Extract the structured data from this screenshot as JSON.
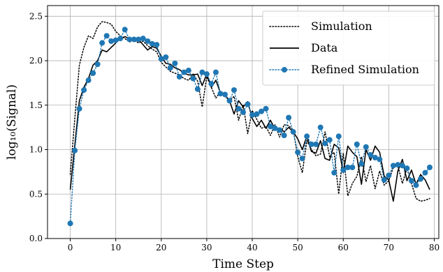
{
  "chart_data": {
    "type": "line",
    "xlabel": "Time Step",
    "ylabel": "log₁₀(Signal)",
    "xlim": [
      -5,
      81
    ],
    "ylim": [
      0.0,
      2.62
    ],
    "xticks": [
      0,
      10,
      20,
      30,
      40,
      50,
      60,
      70,
      80
    ],
    "yticks": [
      0.0,
      0.5,
      1.0,
      1.5,
      2.0,
      2.5
    ],
    "ytick_labels": [
      "0.0",
      "0.5",
      "1.0",
      "1.5",
      "2.0",
      "2.5"
    ],
    "grid": true,
    "legend_position": "top-right",
    "x": [
      0,
      1,
      2,
      3,
      4,
      5,
      6,
      7,
      8,
      9,
      10,
      11,
      12,
      13,
      14,
      15,
      16,
      17,
      18,
      19,
      20,
      21,
      22,
      23,
      24,
      25,
      26,
      27,
      28,
      29,
      30,
      31,
      32,
      33,
      34,
      35,
      36,
      37,
      38,
      39,
      40,
      41,
      42,
      43,
      44,
      45,
      46,
      47,
      48,
      49,
      50,
      51,
      52,
      53,
      54,
      55,
      56,
      57,
      58,
      59,
      60,
      61,
      62,
      63,
      64,
      65,
      66,
      67,
      68,
      69,
      70,
      71,
      72,
      73,
      74,
      75,
      76,
      77,
      78,
      79
    ],
    "series": [
      {
        "name": "Simulation",
        "style": "dotted",
        "color": "#000000",
        "values": [
          0.72,
          1.35,
          1.95,
          2.15,
          2.28,
          2.25,
          2.38,
          2.44,
          2.43,
          2.41,
          2.33,
          2.28,
          2.25,
          2.21,
          2.23,
          2.2,
          2.22,
          2.17,
          2.13,
          2.1,
          1.98,
          1.93,
          1.88,
          1.86,
          1.84,
          1.8,
          1.78,
          1.85,
          1.77,
          1.48,
          1.82,
          1.7,
          1.58,
          1.65,
          1.6,
          1.55,
          1.6,
          1.33,
          1.5,
          1.18,
          1.44,
          1.34,
          1.24,
          1.26,
          1.16,
          1.28,
          1.14,
          1.28,
          1.27,
          1.22,
          0.92,
          0.74,
          1.1,
          1.0,
          0.93,
          0.95,
          1.2,
          0.92,
          0.97,
          0.5,
          0.96,
          0.48,
          0.62,
          0.7,
          0.92,
          0.64,
          0.82,
          0.56,
          0.76,
          0.6,
          0.65,
          0.8,
          0.82,
          0.62,
          0.79,
          0.62,
          0.45,
          0.42,
          0.43,
          0.45
        ]
      },
      {
        "name": "Data",
        "style": "solid",
        "color": "#000000",
        "values": [
          0.55,
          1.05,
          1.55,
          1.7,
          1.8,
          1.95,
          2.0,
          2.12,
          2.1,
          2.15,
          2.2,
          2.25,
          2.27,
          2.25,
          2.24,
          2.24,
          2.18,
          2.12,
          2.16,
          2.14,
          2.05,
          1.97,
          1.96,
          1.92,
          1.9,
          1.86,
          1.84,
          1.84,
          1.85,
          1.72,
          1.85,
          1.7,
          1.78,
          1.64,
          1.62,
          1.55,
          1.4,
          1.55,
          1.48,
          1.54,
          1.35,
          1.26,
          1.33,
          1.24,
          1.33,
          1.23,
          1.24,
          1.2,
          1.25,
          1.2,
          1.12,
          1.0,
          1.15,
          0.98,
          0.96,
          1.1,
          0.9,
          0.88,
          1.06,
          1.02,
          0.74,
          1.04,
          0.97,
          0.92,
          0.61,
          1.0,
          0.88,
          1.04,
          0.97,
          0.7,
          0.66,
          0.42,
          0.76,
          0.89,
          0.65,
          0.77,
          0.61,
          0.72,
          0.66,
          0.55
        ]
      },
      {
        "name": "Refined Simulation",
        "style": "dotted-markers",
        "color": "#1f77b4",
        "values": [
          0.17,
          0.99,
          1.46,
          1.67,
          1.78,
          1.86,
          1.96,
          2.2,
          2.28,
          2.22,
          2.23,
          2.25,
          2.35,
          2.24,
          2.24,
          2.24,
          2.25,
          2.22,
          2.19,
          2.18,
          2.02,
          2.04,
          1.92,
          1.97,
          1.82,
          1.87,
          1.89,
          1.8,
          1.68,
          1.87,
          1.85,
          1.74,
          1.87,
          1.63,
          1.62,
          1.55,
          1.67,
          1.46,
          1.42,
          1.51,
          1.39,
          1.4,
          1.43,
          1.46,
          1.26,
          1.24,
          1.22,
          1.16,
          1.36,
          1.2,
          0.97,
          0.9,
          1.15,
          1.06,
          1.06,
          1.25,
          1.07,
          1.11,
          0.74,
          1.15,
          0.77,
          0.8,
          0.8,
          1.06,
          0.84,
          1.03,
          0.94,
          0.91,
          0.89,
          0.66,
          0.71,
          0.82,
          0.83,
          0.82,
          0.79,
          0.65,
          0.6,
          0.67,
          0.74,
          0.8
        ]
      }
    ]
  }
}
